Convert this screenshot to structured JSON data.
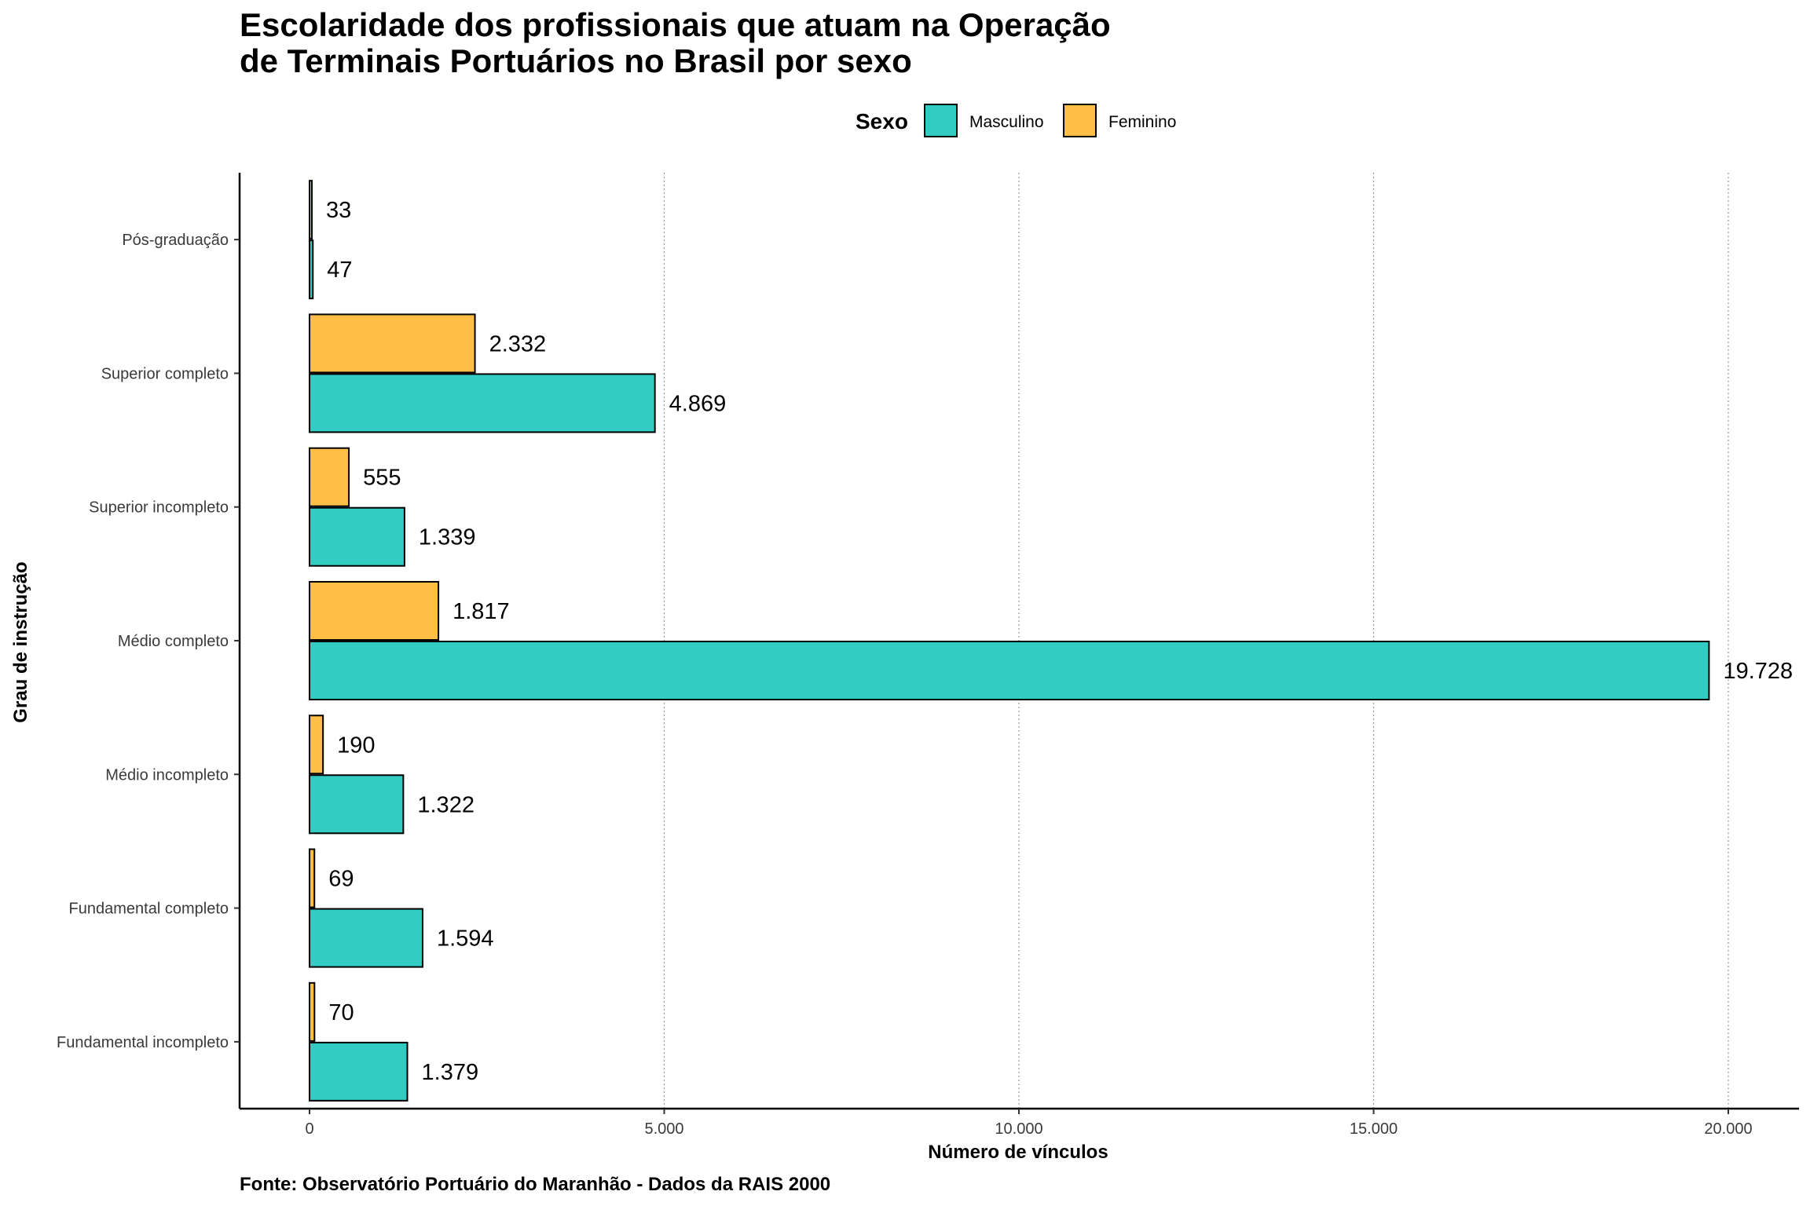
{
  "chart_data": {
    "type": "bar",
    "orientation": "horizontal",
    "title_lines": [
      "Escolaridade dos profissionais que atuam na Operação",
      "de Terminais Portuários no Brasil por sexo"
    ],
    "legend": {
      "title": "Sexo",
      "position": "top"
    },
    "xlabel": "Número de vínculos",
    "ylabel": "Grau de instrução",
    "caption": "Fonte: Observatório Portuário do Maranhão - Dados da RAIS 2000",
    "xlim": [
      0,
      20000
    ],
    "x_ticks": [
      0,
      5000,
      10000,
      15000,
      20000
    ],
    "x_tick_labels": [
      "0",
      "5.000",
      "10.000",
      "15.000",
      "20.000"
    ],
    "grid": "vertical-dotted",
    "categories": [
      "Pós-graduação",
      "Superior completo",
      "Superior incompleto",
      "Médio completo",
      "Médio incompleto",
      "Fundamental completo",
      "Fundamental incompleto"
    ],
    "series": [
      {
        "name": "Masculino",
        "color": "#33ccc2",
        "values": [
          47,
          4869,
          1339,
          19728,
          1322,
          1594,
          1379
        ],
        "labels": [
          "47",
          "4.869",
          "1.339",
          "19.728",
          "1.322",
          "1.594",
          "1.379"
        ]
      },
      {
        "name": "Feminino",
        "color": "#ffbf47",
        "values": [
          33,
          2332,
          555,
          1817,
          190,
          69,
          70
        ],
        "labels": [
          "33",
          "2.332",
          "555",
          "1.817",
          "190",
          "69",
          "70"
        ]
      }
    ]
  }
}
